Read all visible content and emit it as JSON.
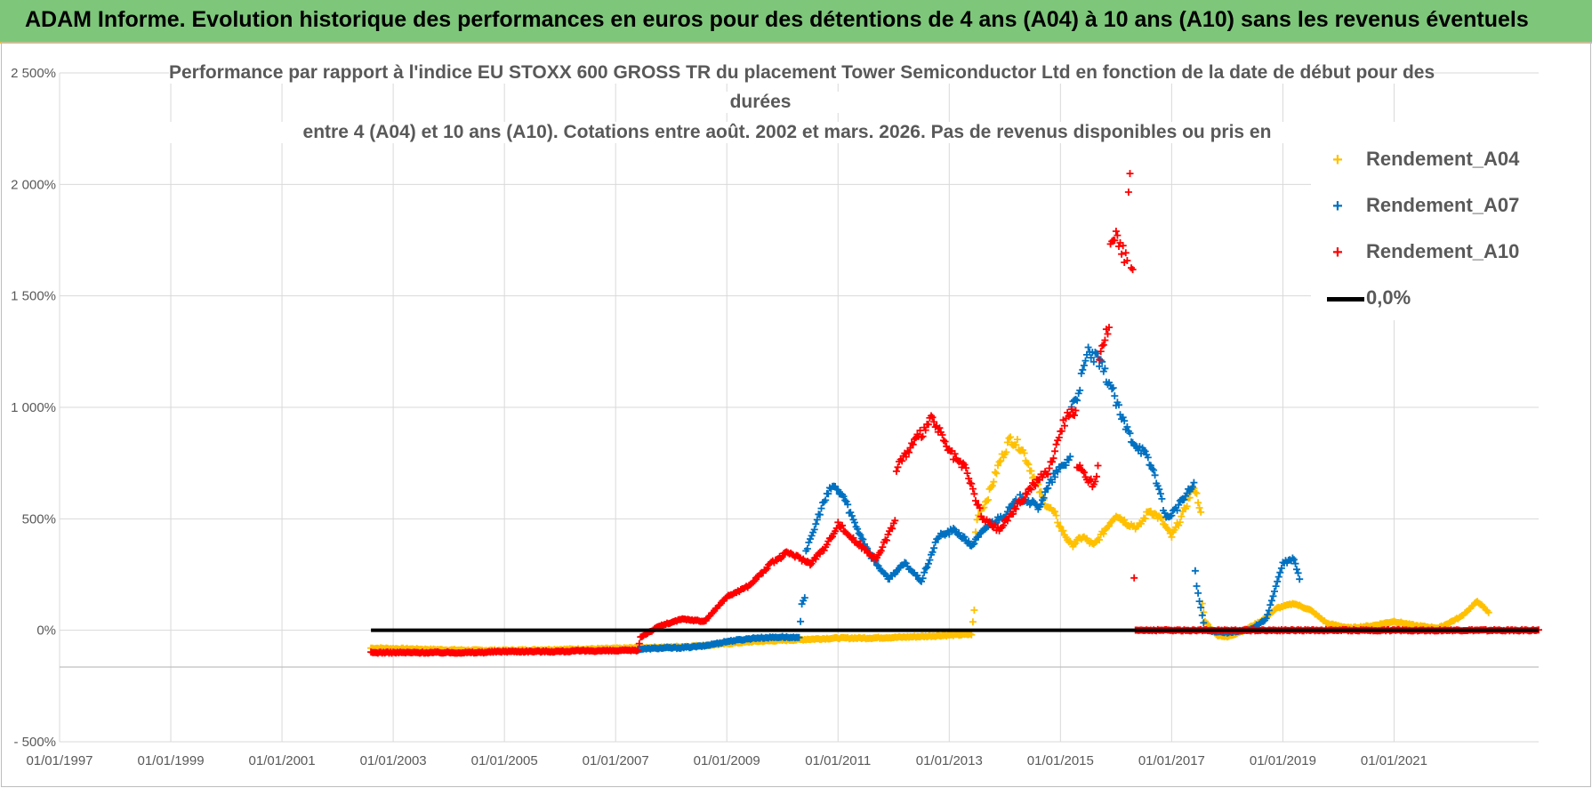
{
  "header": {
    "title": "ADAM Informe. Evolution historique des performances en euros pour des détentions de 4 ans (A04) à 10 ans (A10) sans les revenus éventuels",
    "colors": {
      "bar": "#7dc67a",
      "accent": "#e0c040"
    }
  },
  "chart_data": {
    "type": "scatter",
    "title_lines": [
      "Performance par rapport à l'indice EU STOXX 600 GROSS TR  du placement Tower Semiconductor Ltd en fonction de la date de début pour des",
      "durées",
      "entre 4 (A04) et 10 ans (A10). Cotations entre août. 2002 et mars. 2026. Pas de revenus disponibles ou pris en"
    ],
    "xlabel": "",
    "ylabel": "",
    "xlim": [
      1997.0,
      2023.6
    ],
    "ylim": [
      -500,
      2500
    ],
    "x_tick_values": [
      1997,
      1999,
      2001,
      2003,
      2005,
      2007,
      2009,
      2011,
      2013,
      2015,
      2017,
      2019,
      2021
    ],
    "x_tick_labels": [
      "01/01/1997",
      "01/01/1999",
      "01/01/2001",
      "01/01/2003",
      "01/01/2005",
      "01/01/2007",
      "01/01/2009",
      "01/01/2011",
      "01/01/2013",
      "01/01/2015",
      "01/01/2017",
      "01/01/2019",
      "01/01/2021"
    ],
    "y_tick_values": [
      -500,
      0,
      500,
      1000,
      1500,
      2000,
      2500
    ],
    "y_tick_labels": [
      "- 500%",
      "0%",
      "500%",
      "1 000%",
      "1 500%",
      "2 000%",
      "2 500%"
    ],
    "grid": true,
    "legend_position": "top-right",
    "series": [
      {
        "name": "Rendement_A04",
        "color": "#ffc000",
        "marker": "+",
        "points": [
          [
            2002.6,
            -80
          ],
          [
            2003.0,
            -82
          ],
          [
            2003.5,
            -85
          ],
          [
            2004.0,
            -88
          ],
          [
            2004.5,
            -90
          ],
          [
            2005.0,
            -90
          ],
          [
            2005.5,
            -88
          ],
          [
            2006.0,
            -86
          ],
          [
            2006.5,
            -84
          ],
          [
            2007.0,
            -82
          ],
          [
            2007.5,
            -78
          ],
          [
            2008.0,
            -75
          ],
          [
            2008.5,
            -70
          ],
          [
            2009.0,
            -60
          ],
          [
            2009.5,
            -50
          ],
          [
            2010.0,
            -45
          ],
          [
            2010.5,
            -40
          ],
          [
            2011.0,
            -35
          ],
          [
            2011.5,
            -35
          ],
          [
            2012.0,
            -32
          ],
          [
            2012.5,
            -28
          ],
          [
            2013.0,
            -22
          ],
          [
            2013.4,
            -18
          ],
          [
            2013.45,
            90
          ],
          [
            2013.5,
            500
          ],
          [
            2013.7,
            600
          ],
          [
            2013.9,
            750
          ],
          [
            2014.1,
            860
          ],
          [
            2014.3,
            820
          ],
          [
            2014.5,
            700
          ],
          [
            2014.7,
            580
          ],
          [
            2014.9,
            520
          ],
          [
            2015.0,
            460
          ],
          [
            2015.2,
            380
          ],
          [
            2015.4,
            420
          ],
          [
            2015.6,
            380
          ],
          [
            2015.8,
            450
          ],
          [
            2016.0,
            520
          ],
          [
            2016.2,
            480
          ],
          [
            2016.4,
            460
          ],
          [
            2016.6,
            540
          ],
          [
            2016.8,
            500
          ],
          [
            2017.0,
            420
          ],
          [
            2017.2,
            520
          ],
          [
            2017.4,
            650
          ],
          [
            2017.5,
            560
          ],
          [
            2017.6,
            40
          ],
          [
            2017.8,
            -20
          ],
          [
            2018.0,
            -30
          ],
          [
            2018.3,
            0
          ],
          [
            2018.6,
            40
          ],
          [
            2018.9,
            100
          ],
          [
            2019.2,
            120
          ],
          [
            2019.5,
            90
          ],
          [
            2019.8,
            30
          ],
          [
            2020.2,
            10
          ],
          [
            2020.6,
            20
          ],
          [
            2021.0,
            40
          ],
          [
            2021.4,
            20
          ],
          [
            2021.8,
            10
          ],
          [
            2022.2,
            60
          ],
          [
            2022.5,
            130
          ],
          [
            2022.7,
            80
          ]
        ]
      },
      {
        "name": "Rendement_A07",
        "color": "#0070c0",
        "marker": "+",
        "points": [
          [
            2007.4,
            -85
          ],
          [
            2007.8,
            -80
          ],
          [
            2008.2,
            -78
          ],
          [
            2008.6,
            -70
          ],
          [
            2009.0,
            -50
          ],
          [
            2009.5,
            -35
          ],
          [
            2010.0,
            -30
          ],
          [
            2010.3,
            -35
          ],
          [
            2010.35,
            120
          ],
          [
            2010.5,
            400
          ],
          [
            2010.7,
            550
          ],
          [
            2010.9,
            650
          ],
          [
            2011.1,
            600
          ],
          [
            2011.3,
            480
          ],
          [
            2011.6,
            330
          ],
          [
            2011.9,
            230
          ],
          [
            2012.2,
            300
          ],
          [
            2012.5,
            220
          ],
          [
            2012.8,
            420
          ],
          [
            2013.1,
            450
          ],
          [
            2013.4,
            380
          ],
          [
            2013.7,
            470
          ],
          [
            2014.0,
            520
          ],
          [
            2014.3,
            600
          ],
          [
            2014.6,
            550
          ],
          [
            2014.9,
            700
          ],
          [
            2015.1,
            750
          ],
          [
            2015.3,
            1050
          ],
          [
            2015.5,
            1250
          ],
          [
            2015.7,
            1200
          ],
          [
            2015.9,
            1100
          ],
          [
            2016.1,
            950
          ],
          [
            2016.3,
            850
          ],
          [
            2016.5,
            800
          ],
          [
            2016.7,
            700
          ],
          [
            2016.9,
            500
          ],
          [
            2017.1,
            550
          ],
          [
            2017.3,
            620
          ],
          [
            2017.4,
            650
          ],
          [
            2017.45,
            200
          ],
          [
            2017.6,
            0
          ],
          [
            2018.0,
            -10
          ],
          [
            2018.4,
            0
          ],
          [
            2018.7,
            50
          ],
          [
            2019.0,
            300
          ],
          [
            2019.2,
            320
          ],
          [
            2019.3,
            230
          ]
        ]
      },
      {
        "name": "Rendement_A10",
        "color": "#ff0000",
        "marker": "+",
        "points": [
          [
            2002.6,
            -100
          ],
          [
            2003.0,
            -100
          ],
          [
            2003.5,
            -100
          ],
          [
            2004.0,
            -100
          ],
          [
            2004.5,
            -100
          ],
          [
            2005.0,
            -95
          ],
          [
            2005.5,
            -95
          ],
          [
            2006.0,
            -95
          ],
          [
            2006.5,
            -92
          ],
          [
            2007.0,
            -92
          ],
          [
            2007.4,
            -90
          ],
          [
            2007.45,
            -30
          ],
          [
            2007.8,
            20
          ],
          [
            2008.2,
            50
          ],
          [
            2008.6,
            40
          ],
          [
            2009.0,
            150
          ],
          [
            2009.4,
            200
          ],
          [
            2009.8,
            300
          ],
          [
            2010.1,
            350
          ],
          [
            2010.5,
            300
          ],
          [
            2010.8,
            380
          ],
          [
            2011.0,
            480
          ],
          [
            2011.3,
            400
          ],
          [
            2011.7,
            320
          ],
          [
            2012.0,
            480
          ],
          [
            2012.1,
            750
          ],
          [
            2012.4,
            850
          ],
          [
            2012.7,
            950
          ],
          [
            2013.0,
            800
          ],
          [
            2013.3,
            720
          ],
          [
            2013.6,
            500
          ],
          [
            2013.9,
            450
          ],
          [
            2014.2,
            550
          ],
          [
            2014.5,
            650
          ],
          [
            2014.8,
            720
          ],
          [
            2015.0,
            900
          ],
          [
            2015.2,
            1000
          ],
          [
            2015.4,
            700
          ],
          [
            2015.6,
            650
          ],
          [
            2015.8,
            1300
          ],
          [
            2016.0,
            1800
          ],
          [
            2016.2,
            1650
          ],
          [
            2016.25,
            2000
          ],
          [
            2016.3,
            1600
          ],
          [
            2016.35,
            0
          ],
          [
            2017.0,
            0
          ],
          [
            2018.0,
            0
          ],
          [
            2019.0,
            0
          ],
          [
            2020.0,
            0
          ],
          [
            2021.0,
            0
          ],
          [
            2022.0,
            0
          ],
          [
            2023.0,
            0
          ],
          [
            2023.6,
            0
          ]
        ]
      },
      {
        "name": "0,0%",
        "color": "#000000",
        "marker": "line",
        "points": [
          [
            2002.6,
            0
          ],
          [
            2023.6,
            0
          ]
        ]
      }
    ]
  }
}
